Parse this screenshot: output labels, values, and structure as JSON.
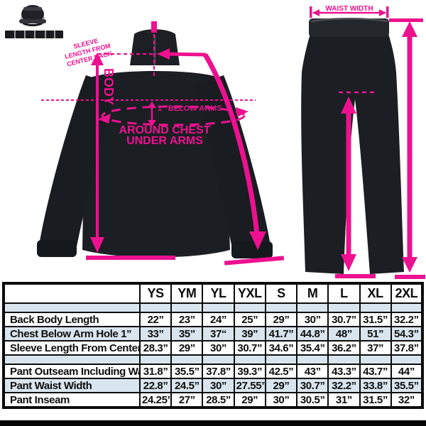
{
  "brand": {
    "logo_icon": "skull-cap-logo"
  },
  "accent_color": "#ed118f",
  "jacket_diagram": {
    "sleeve_note_line1": "SLEEVE",
    "sleeve_note_line2": "LENGTH FROM",
    "sleeve_note_line3": "CENTER BACK",
    "body_label": "BODY",
    "below_arms_label": "1” BELOW ARMS",
    "around_chest_line1": "AROUND CHEST",
    "around_chest_line2": "UNDER ARMS"
  },
  "pants_diagram": {
    "waist_label": "WAIST WIDTH"
  },
  "size_table": {
    "corner_label": "",
    "columns": [
      "YS",
      "YM",
      "YL",
      "YXL",
      "S",
      "M",
      "L",
      "XL",
      "2XL"
    ],
    "rows": [
      {
        "type": "spacer"
      },
      {
        "label": "Back Body Length",
        "values": [
          "22”",
          "23”",
          "24”",
          "25”",
          "29”",
          "30”",
          "30.7”",
          "31.5”",
          "32.2”"
        ]
      },
      {
        "label": "Chest Below Arm Hole 1”",
        "values": [
          "33”",
          "35”",
          "37“",
          "39”",
          "41.7”",
          "44.8”",
          "48”",
          "51”",
          "54.3”"
        ]
      },
      {
        "label": "Sleeve Length From Center Back",
        "values": [
          "28.3”",
          "29”",
          "30”",
          "30.7”",
          "34.6”",
          "35.4”",
          "36.2”",
          "37”",
          "37.8”"
        ]
      },
      {
        "type": "spacer"
      },
      {
        "label": "Pant Outseam Including Waist",
        "values": [
          "31.8”",
          "35.5”",
          "37.8”",
          "39.3”",
          "42.5”",
          "43”",
          "43.3”",
          "43.7”",
          "44”"
        ]
      },
      {
        "label": "Pant Waist Width",
        "values": [
          "22.8”",
          "24.5”",
          "30”",
          "27.55”",
          "29”",
          "30.7”",
          "32.2”",
          "33.8”",
          "35.5”"
        ]
      },
      {
        "label": "Pant Inseam",
        "values": [
          "24.25”",
          "27”",
          "28.5”",
          "29”",
          "30”",
          "30.5”",
          "31”",
          "31.5”",
          "32”"
        ]
      }
    ]
  }
}
